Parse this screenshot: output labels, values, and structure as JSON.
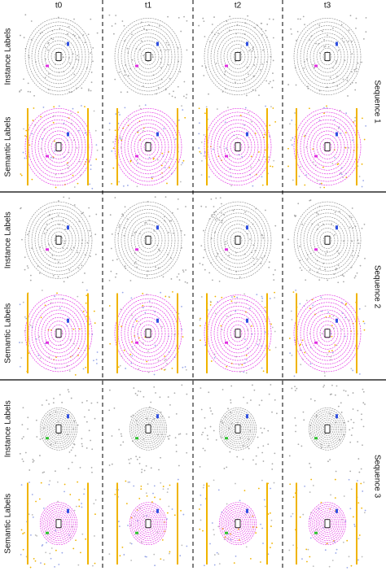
{
  "columns": [
    "t0",
    "t1",
    "t2",
    "t3"
  ],
  "sequences": [
    {
      "label": "Sequence 1",
      "rows": [
        "Instance Labels",
        "Semantic Labels"
      ]
    },
    {
      "label": "Sequence 2",
      "rows": [
        "Instance Labels",
        "Semantic Labels"
      ]
    },
    {
      "label": "Sequence 3",
      "rows": [
        "Instance Labels",
        "Semantic Labels"
      ]
    }
  ]
}
